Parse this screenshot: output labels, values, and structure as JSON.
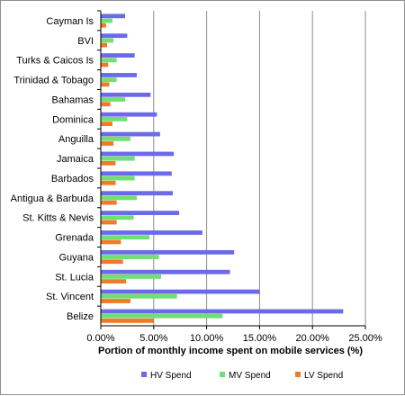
{
  "chart_data": {
    "type": "bar",
    "orientation": "horizontal",
    "categories": [
      "Cayman Is",
      "BVI",
      "Turks & Caicos Is",
      "Trinidad & Tobago",
      "Bahamas",
      "Dominica",
      "Anguilla",
      "Jamaica",
      "Barbados",
      "Antigua & Barbuda",
      "St. Kitts & Nevis",
      "Grenada",
      "Guyana",
      "St. Lucia",
      "St. Vincent",
      "Belize"
    ],
    "series": [
      {
        "name": "HV Spend",
        "color": "#6b6bea",
        "values": [
          2.3,
          2.5,
          3.2,
          3.4,
          4.7,
          5.3,
          5.6,
          6.9,
          6.7,
          6.8,
          7.4,
          9.6,
          12.6,
          12.2,
          15.0,
          22.9
        ]
      },
      {
        "name": "MV Spend",
        "color": "#70e070",
        "values": [
          1.1,
          1.2,
          1.5,
          1.5,
          2.3,
          2.5,
          2.8,
          3.2,
          3.2,
          3.4,
          3.1,
          4.6,
          5.5,
          5.7,
          7.2,
          11.5
        ]
      },
      {
        "name": "LV Spend",
        "color": "#f07a2a",
        "values": [
          0.5,
          0.6,
          0.7,
          0.8,
          0.9,
          1.1,
          1.2,
          1.4,
          1.4,
          1.5,
          1.5,
          1.9,
          2.1,
          2.4,
          2.8,
          5.0
        ]
      }
    ],
    "xlabel": "Portion of monthly income spent on mobile services (%)",
    "xlim": [
      0,
      25
    ],
    "xticks": [
      "0.00%",
      "5.00%",
      "10.00%",
      "15.00%",
      "20.00%",
      "25.00%"
    ],
    "grid": true,
    "legend_position": "bottom"
  }
}
